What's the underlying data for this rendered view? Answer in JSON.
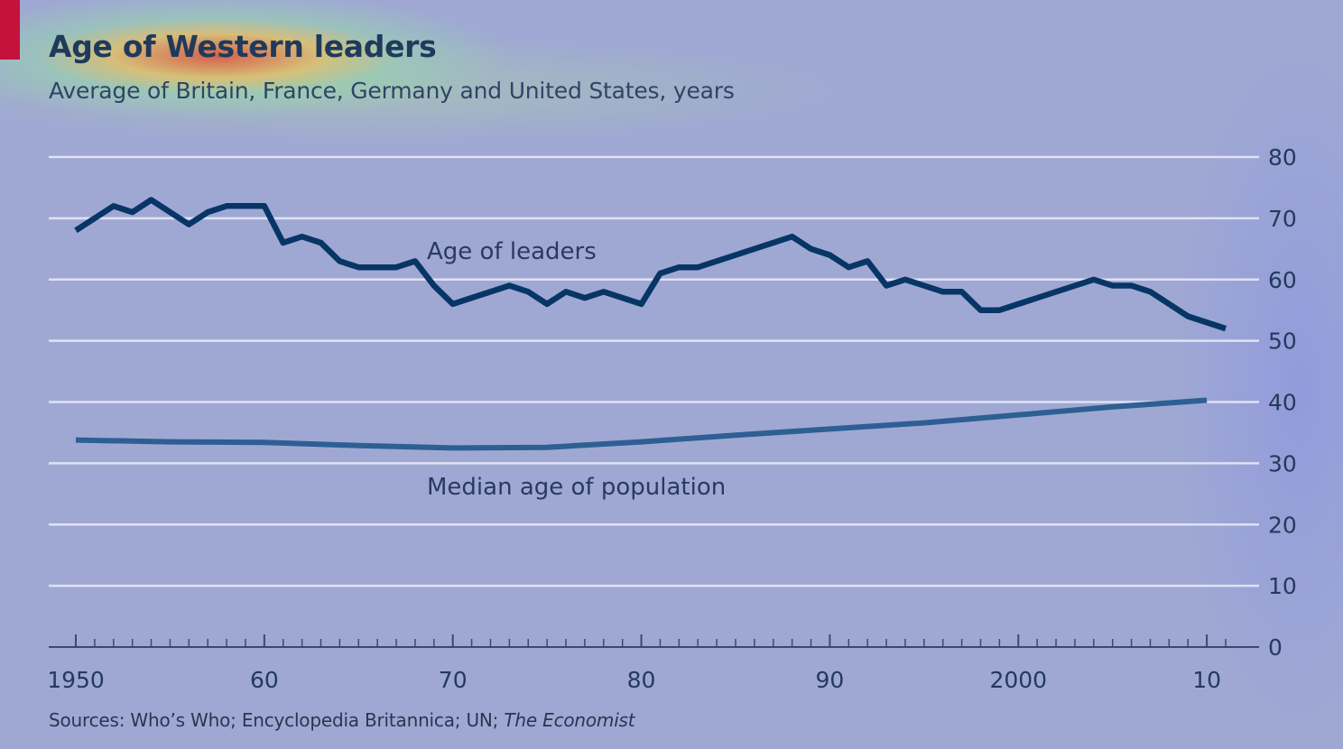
{
  "title": "Age of Western leaders",
  "subtitle": "Average of Britain, France, Germany and United States, years",
  "sources_prefix": "Sources: Who’s Who; Encyclopedia Britannica; UN; ",
  "sources_italic": "The Economist",
  "colors": {
    "leaders_line": "#073566",
    "median_line": "#2d5f93",
    "accent_tab": "#c5123c",
    "gridline": "#dfe1f5",
    "axis": "#3a4a6a"
  },
  "chart_data": {
    "type": "line",
    "title": "Age of Western leaders",
    "subtitle": "Average of Britain, France, Germany and United States, years",
    "x_tick_labels": [
      "1950",
      "60",
      "70",
      "80",
      "90",
      "2000",
      "10"
    ],
    "x_ticks": [
      1950,
      1960,
      1970,
      1980,
      1990,
      2000,
      2010
    ],
    "xlim": [
      1950,
      2011
    ],
    "ylim": [
      0,
      80
    ],
    "y_ticks": [
      0,
      10,
      20,
      30,
      40,
      50,
      60,
      70,
      80
    ],
    "y_axis_side": "right",
    "grid": true,
    "legend": "inline labels",
    "series": [
      {
        "name": "Age of leaders",
        "x": [
          1950,
          1952,
          1953,
          1954,
          1956,
          1957,
          1958,
          1960,
          1961,
          1962,
          1963,
          1964,
          1965,
          1967,
          1968,
          1969,
          1970,
          1973,
          1974,
          1975,
          1976,
          1977,
          1978,
          1980,
          1981,
          1982,
          1983,
          1988,
          1989,
          1990,
          1991,
          1992,
          1993,
          1994,
          1996,
          1997,
          1998,
          1999,
          2000,
          2004,
          2005,
          2006,
          2007,
          2009,
          2011
        ],
        "values": [
          68,
          72,
          71,
          73,
          69,
          71,
          72,
          72,
          66,
          67,
          66,
          63,
          62,
          62,
          63,
          59,
          56,
          59,
          58,
          56,
          58,
          57,
          58,
          56,
          61,
          62,
          62,
          67,
          65,
          64,
          62,
          63,
          59,
          60,
          58,
          58,
          55,
          55,
          56,
          60,
          59,
          59,
          58,
          54,
          52
        ]
      },
      {
        "name": "Median age of population",
        "x": [
          1950,
          1955,
          1960,
          1965,
          1970,
          1975,
          1980,
          1985,
          1990,
          1995,
          2000,
          2005,
          2010
        ],
        "values": [
          33.8,
          33.5,
          33.4,
          32.9,
          32.5,
          32.6,
          33.5,
          34.6,
          35.6,
          36.6,
          37.9,
          39.2,
          40.3
        ]
      }
    ],
    "annotations": [
      "Age of leaders",
      "Median age of population"
    ]
  }
}
